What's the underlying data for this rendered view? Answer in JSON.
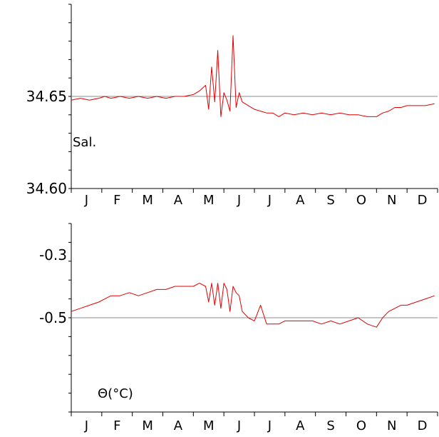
{
  "chart_data": [
    {
      "type": "line",
      "ylabel": "Sal.",
      "ylim": [
        34.6,
        34.7
      ],
      "y_ticks": [
        34.6,
        34.65
      ],
      "y_tick_labels": [
        "34.60",
        "34.65"
      ],
      "reference_line": 34.65,
      "x_tick_labels": [
        "J",
        "F",
        "M",
        "A",
        "M",
        "J",
        "J",
        "A",
        "S",
        "O",
        "N",
        "D"
      ],
      "grid": false,
      "series_color": "#e00000",
      "series": [
        {
          "x": [
            0,
            0.3,
            0.6,
            0.9,
            1.1,
            1.3,
            1.6,
            1.9,
            2.2,
            2.5,
            2.8,
            3.1,
            3.4,
            3.7,
            4.0,
            4.2,
            4.4,
            4.5,
            4.6,
            4.7,
            4.8,
            4.9,
            5.0,
            5.1,
            5.2,
            5.3,
            5.4,
            5.5,
            5.6,
            5.8,
            6.0,
            6.2,
            6.4,
            6.6,
            6.8,
            7.0,
            7.3,
            7.6,
            7.9,
            8.2,
            8.5,
            8.8,
            9.1,
            9.4,
            9.7,
            10.0,
            10.2,
            10.4,
            10.6,
            10.8,
            11.0,
            11.3,
            11.6,
            11.9
          ],
          "values": [
            34.648,
            34.649,
            34.648,
            34.649,
            34.65,
            34.649,
            34.65,
            34.649,
            34.65,
            34.649,
            34.65,
            34.649,
            34.65,
            34.65,
            34.651,
            34.653,
            34.656,
            34.643,
            34.666,
            34.647,
            34.675,
            34.639,
            34.652,
            34.648,
            34.642,
            34.683,
            34.644,
            34.652,
            34.647,
            34.645,
            34.643,
            34.642,
            34.641,
            34.641,
            34.639,
            34.641,
            34.64,
            34.641,
            34.64,
            34.641,
            34.64,
            34.641,
            34.64,
            34.64,
            34.639,
            34.639,
            34.641,
            34.642,
            34.644,
            34.644,
            34.645,
            34.645,
            34.645,
            34.646
          ]
        }
      ]
    },
    {
      "type": "line",
      "ylabel": "Θ(°C)",
      "ylim": [
        -0.8,
        -0.2
      ],
      "y_ticks": [
        -0.3,
        -0.5
      ],
      "y_tick_labels": [
        "-0.3",
        "-0.5"
      ],
      "reference_line": -0.5,
      "x_tick_labels": [
        "J",
        "F",
        "M",
        "A",
        "M",
        "J",
        "J",
        "A",
        "S",
        "O",
        "N",
        "D"
      ],
      "grid": false,
      "series_color": "#e00000",
      "series": [
        {
          "x": [
            0,
            0.3,
            0.6,
            0.9,
            1.1,
            1.3,
            1.6,
            1.9,
            2.2,
            2.5,
            2.8,
            3.1,
            3.4,
            3.7,
            4.0,
            4.2,
            4.4,
            4.5,
            4.6,
            4.7,
            4.8,
            4.9,
            5.0,
            5.1,
            5.2,
            5.3,
            5.4,
            5.5,
            5.6,
            5.8,
            6.0,
            6.2,
            6.4,
            6.6,
            6.8,
            7.0,
            7.3,
            7.6,
            7.9,
            8.2,
            8.5,
            8.8,
            9.1,
            9.4,
            9.7,
            10.0,
            10.2,
            10.4,
            10.6,
            10.8,
            11.0,
            11.3,
            11.6,
            11.9
          ],
          "values": [
            -0.48,
            -0.47,
            -0.46,
            -0.45,
            -0.44,
            -0.43,
            -0.43,
            -0.42,
            -0.43,
            -0.42,
            -0.41,
            -0.41,
            -0.4,
            -0.4,
            -0.4,
            -0.39,
            -0.4,
            -0.45,
            -0.39,
            -0.46,
            -0.39,
            -0.47,
            -0.39,
            -0.41,
            -0.48,
            -0.4,
            -0.42,
            -0.43,
            -0.48,
            -0.5,
            -0.51,
            -0.46,
            -0.52,
            -0.52,
            -0.52,
            -0.51,
            -0.51,
            -0.51,
            -0.51,
            -0.52,
            -0.51,
            -0.52,
            -0.51,
            -0.5,
            -0.52,
            -0.53,
            -0.5,
            -0.48,
            -0.47,
            -0.46,
            -0.46,
            -0.45,
            -0.44,
            -0.43
          ]
        }
      ]
    }
  ]
}
